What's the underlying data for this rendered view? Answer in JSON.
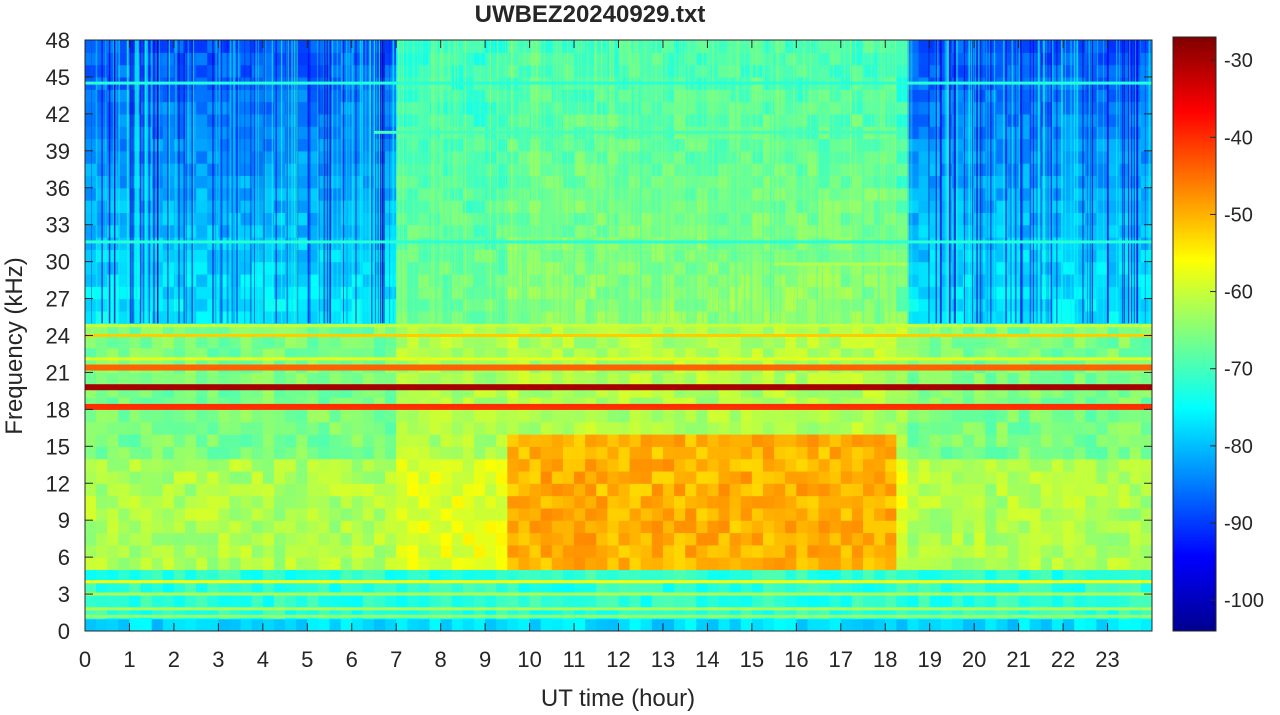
{
  "chart_data": {
    "type": "heatmap",
    "title": "UWBEZ20240929.txt",
    "xlabel": "UT time (hour)",
    "ylabel": "Frequency (kHz)",
    "xlim": [
      0,
      24
    ],
    "ylim": [
      0,
      48
    ],
    "x_ticks": [
      0,
      1,
      2,
      3,
      4,
      5,
      6,
      7,
      8,
      9,
      10,
      11,
      12,
      13,
      14,
      15,
      16,
      17,
      18,
      19,
      20,
      21,
      22,
      23
    ],
    "y_ticks": [
      0,
      3,
      6,
      9,
      12,
      15,
      18,
      21,
      24,
      27,
      30,
      33,
      36,
      39,
      42,
      45,
      48
    ],
    "colorbar": {
      "colormap": "jet",
      "range": [
        -104,
        -27
      ],
      "ticks": [
        -100,
        -90,
        -80,
        -70,
        -60,
        -50,
        -40,
        -30
      ]
    },
    "background": {
      "day_hours": [
        7,
        18.5
      ],
      "day_strong_hours": [
        9.5,
        18.2
      ],
      "night_high_freq_level": -88,
      "day_high_freq_level": -72,
      "mid_band_khz": [
        5,
        16
      ],
      "mid_band_level_night": -62,
      "mid_band_level_day": -50,
      "low_band_level": -72
    },
    "lines": [
      {
        "freq_khz": 19.8,
        "level_db": -30,
        "hours": [
          0,
          24
        ]
      },
      {
        "freq_khz": 18.2,
        "level_db": -40,
        "hours": [
          0,
          24
        ]
      },
      {
        "freq_khz": 21.4,
        "level_db": -44,
        "hours": [
          0,
          24
        ]
      },
      {
        "freq_khz": 22.1,
        "level_db": -58,
        "hours": [
          0,
          24
        ]
      },
      {
        "freq_khz": 24.0,
        "level_db": -52,
        "hours": [
          0,
          24
        ]
      },
      {
        "freq_khz": 24.8,
        "level_db": -60,
        "hours": [
          0,
          24
        ]
      },
      {
        "freq_khz": 4.0,
        "level_db": -56,
        "hours": [
          0,
          24
        ]
      },
      {
        "freq_khz": 3.0,
        "level_db": -62,
        "hours": [
          0,
          24
        ]
      },
      {
        "freq_khz": 1.8,
        "level_db": -62,
        "hours": [
          0,
          24
        ]
      },
      {
        "freq_khz": 1.2,
        "level_db": -64,
        "hours": [
          0,
          24
        ]
      },
      {
        "freq_khz": 31.6,
        "level_db": -72,
        "hours": [
          0,
          24
        ]
      },
      {
        "freq_khz": 44.5,
        "level_db": -72,
        "hours": [
          0,
          24
        ]
      },
      {
        "freq_khz": 29.8,
        "level_db": -62,
        "hours": [
          15.5,
          18.5
        ]
      },
      {
        "freq_khz": 40.5,
        "level_db": -70,
        "hours": [
          6.5,
          18.5
        ]
      }
    ]
  }
}
